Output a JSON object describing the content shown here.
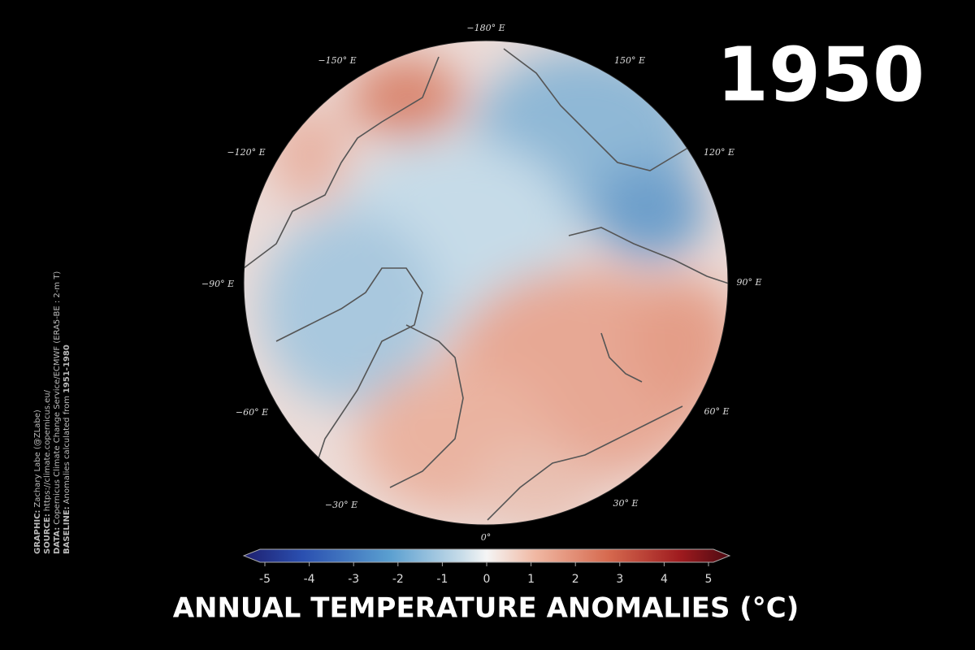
{
  "year": "1950",
  "title": "ANNUAL TEMPERATURE ANOMALIES (°C)",
  "longitude_labels": [
    "−180° E",
    "150° E",
    "120° E",
    "90° E",
    "60° E",
    "30° E",
    "0°",
    "−30° E",
    "−60° E",
    "−90° E",
    "−120° E",
    "−150° E"
  ],
  "colorbar": {
    "lim": [
      -5,
      5
    ],
    "ticks": [
      -5,
      -4,
      -3,
      -2,
      -1,
      0,
      1,
      2,
      3,
      4,
      5
    ]
  },
  "credits": [
    {
      "label": "GRAPHIC:",
      "text": "Zachary Labe (@ZLabe)"
    },
    {
      "label": "SOURCE:",
      "text": "https://climate.copernicus.eu/"
    },
    {
      "label": "DATA:",
      "text": "Copernicus Climate Change Service/ECMWF (ERA5-BE : 2-m T)"
    },
    {
      "label": "BASELINE:",
      "text": "Anomalies calculated from",
      "emphasis": "1951-1980"
    }
  ]
}
